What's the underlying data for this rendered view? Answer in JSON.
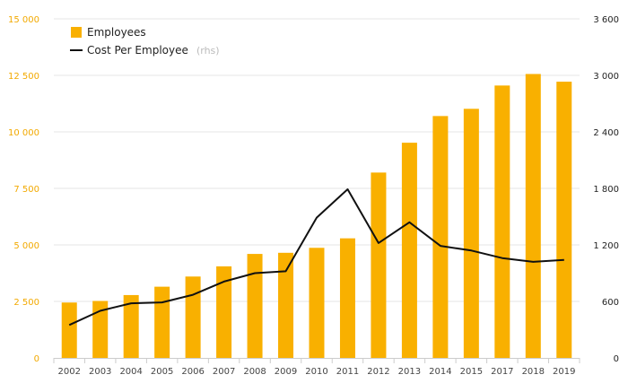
{
  "chart_data": {
    "type": "bar",
    "categories": [
      "2002",
      "2003",
      "2004",
      "2005",
      "2006",
      "2007",
      "2008",
      "2009",
      "2010",
      "2011",
      "2012",
      "2013",
      "2014",
      "2015",
      "2017",
      "2018",
      "2019"
    ],
    "series": [
      {
        "name": "Employees",
        "type": "bar",
        "axis": "left",
        "color": "#f9b000",
        "values": [
          2450,
          2520,
          2780,
          3150,
          3600,
          4050,
          4600,
          4650,
          4870,
          5290,
          8200,
          9520,
          10700,
          11020,
          12050,
          12560,
          12220
        ]
      },
      {
        "name": "Cost Per Employee",
        "type": "line",
        "axis": "right",
        "color": "#111111",
        "values": [
          350,
          500,
          580,
          590,
          670,
          810,
          900,
          920,
          1490,
          1790,
          1220,
          1440,
          1190,
          1140,
          1060,
          1020,
          1040
        ]
      }
    ],
    "legend": {
      "position": "top-left",
      "rhs_suffix": "(rhs)"
    },
    "y_left": {
      "ylim": [
        0,
        15000
      ],
      "ticks": [
        0,
        2500,
        5000,
        7500,
        10000,
        12500,
        15000
      ],
      "tick_labels": [
        "0",
        "2 500",
        "5 000",
        "7 500",
        "10 000",
        "12 500",
        "15 000"
      ],
      "color": "#f2a900"
    },
    "y_right": {
      "ylim": [
        0,
        3600
      ],
      "ticks": [
        0,
        600,
        1200,
        1800,
        2400,
        3000,
        3600
      ],
      "tick_labels": [
        "0",
        "600",
        "1 200",
        "1 800",
        "2 400",
        "3 000",
        "3 600"
      ],
      "color": "#222222"
    },
    "grid": true,
    "title": "",
    "xlabel": "",
    "ylabel": ""
  }
}
